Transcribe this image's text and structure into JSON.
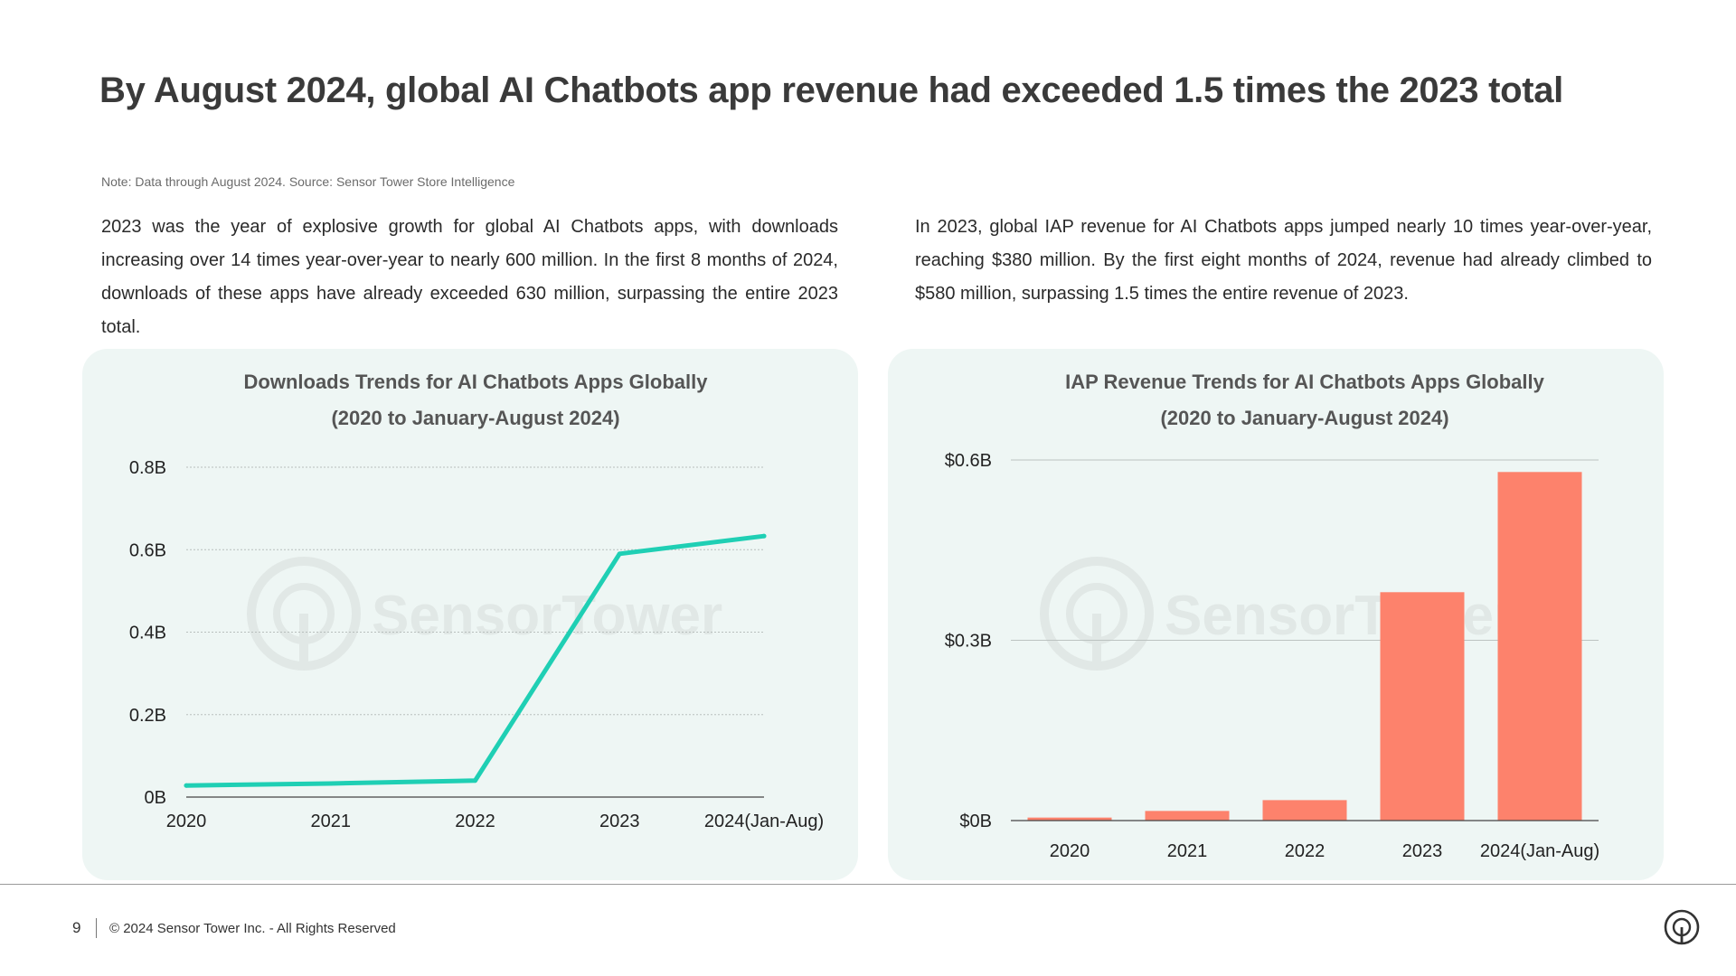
{
  "title": "By August 2024, global AI Chatbots app revenue had exceeded 1.5 times the 2023 total",
  "note": "Note: Data through August 2024. Source: Sensor Tower Store Intelligence",
  "paragraphs": {
    "left": "2023 was the year of explosive growth for global AI Chatbots apps, with downloads increasing over 14 times year-over-year to nearly 600 million. In the first 8 months of 2024, downloads of these apps have already exceeded 630 million, surpassing the entire 2023 total.",
    "right": "In 2023, global IAP revenue for AI Chatbots apps jumped nearly 10 times year-over-year, reaching $380 million. By the first eight months of 2024, revenue had already climbed to $580 million, surpassing 1.5 times the entire revenue of 2023."
  },
  "watermark": "SensorTower",
  "footer": {
    "page": "9",
    "copyright": "© 2024 Sensor Tower Inc. - All Rights Reserved",
    "logo_icon": "sensor-tower-logo-icon"
  },
  "chart_data": [
    {
      "type": "line",
      "title": "Downloads Trends for AI Chatbots Apps Globally",
      "subtitle": "(2020 to January-August 2024)",
      "categories": [
        "2020",
        "2021",
        "2022",
        "2023",
        "2024(Jan-Aug)"
      ],
      "values": [
        0.028,
        0.033,
        0.04,
        0.59,
        0.633
      ],
      "unit": "B",
      "ylim": [
        0,
        0.8
      ],
      "yticks": [
        0,
        0.2,
        0.4,
        0.6,
        0.8
      ],
      "ytick_labels": [
        "0B",
        "0.2B",
        "0.4B",
        "0.6B",
        "0.8B"
      ],
      "grid": true,
      "legend": "none",
      "color": "#1fcfb4"
    },
    {
      "type": "bar",
      "title": "IAP Revenue Trends for AI Chatbots Apps Globally",
      "subtitle": "(2020 to January-August 2024)",
      "categories": [
        "2020",
        "2021",
        "2022",
        "2023",
        "2024(Jan-Aug)"
      ],
      "values": [
        0.005,
        0.016,
        0.034,
        0.38,
        0.58
      ],
      "unit": "$B",
      "ylim": [
        0,
        0.6
      ],
      "yticks": [
        0,
        0.3,
        0.6
      ],
      "ytick_labels": [
        "$0B",
        "$0.3B",
        "$0.6B"
      ],
      "grid": true,
      "legend": "none",
      "color": "#fd826c"
    }
  ]
}
